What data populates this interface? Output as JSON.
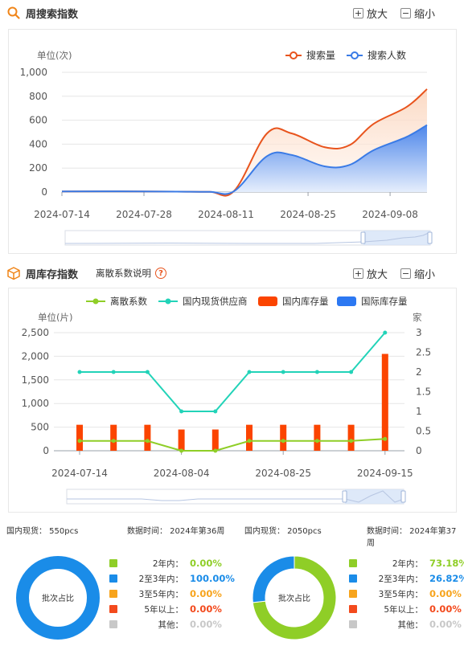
{
  "search_section": {
    "title": "周搜索指数",
    "zoom_in": "放大",
    "zoom_out": "缩小",
    "unit_label": "单位(次)",
    "legend": [
      "搜索量",
      "搜索人数"
    ]
  },
  "stock_section": {
    "title": "周库存指数",
    "dispersion_link": "离散系数说明",
    "help": "?",
    "zoom_in": "放大",
    "zoom_out": "缩小",
    "unit_left": "单位(片)",
    "unit_right": "家",
    "legend": [
      "离散系数",
      "国内现货供应商",
      "国内库存量",
      "国际库存量"
    ]
  },
  "chart_data": [
    {
      "type": "area",
      "title": "",
      "ylabel": "单位(次)",
      "ylim": [
        0,
        1000
      ],
      "yticks": [
        "0",
        "200",
        "400",
        "600",
        "800",
        "1,000"
      ],
      "xticks": [
        "2024-07-14",
        "2024-07-28",
        "2024-08-11",
        "2024-08-25",
        "2024-09-08"
      ],
      "colors": [
        "#e8541d",
        "#3a7be6"
      ],
      "series": [
        {
          "name": "搜索量",
          "x": [
            0,
            7,
            14,
            18,
            21,
            25,
            28,
            32,
            35,
            38,
            42,
            44.5
          ],
          "values": [
            5,
            6,
            3,
            2,
            10,
            490,
            490,
            375,
            390,
            570,
            710,
            860
          ]
        },
        {
          "name": "搜索人数",
          "x": [
            0,
            7,
            14,
            18,
            21,
            25,
            28,
            32,
            35,
            38,
            42,
            44.5
          ],
          "values": [
            5,
            6,
            3,
            2,
            8,
            300,
            310,
            215,
            225,
            350,
            460,
            560
          ]
        }
      ]
    },
    {
      "type": "bar",
      "title": "",
      "ylabel": "单位(片)",
      "ylim": [
        0,
        2500
      ],
      "yticks": [
        "0",
        "500",
        "1,000",
        "1,500",
        "2,000",
        "2,500"
      ],
      "y2label": "家",
      "y2lim": [
        0,
        3
      ],
      "y2ticks": [
        "0",
        "0.5",
        "1",
        "1.5",
        "2",
        "2.5",
        "3"
      ],
      "xticks": [
        "2024-07-14",
        "2024-08-04",
        "2024-08-25",
        "2024-09-15"
      ],
      "colors": {
        "bar": "#fb4400",
        "supplier": "#22d3b8",
        "dispersion": "#8fce27"
      },
      "series": [
        {
          "name": "国内库存量",
          "values": [
            550,
            550,
            550,
            450,
            450,
            550,
            550,
            550,
            550,
            2050
          ]
        },
        {
          "name": "国内现货供应商",
          "axis": "right",
          "values": [
            2,
            2,
            2,
            1,
            1,
            2,
            2,
            2,
            2,
            3
          ]
        },
        {
          "name": "离散系数",
          "axis": "right",
          "values": [
            0.25,
            0.25,
            0.25,
            0,
            0,
            0.25,
            0.25,
            0.25,
            0.25,
            0.3
          ]
        }
      ]
    },
    {
      "type": "pie",
      "center_label": "批次占比",
      "info_stock": "国内现货：  550pcs",
      "info_time": "数据时间：  2024年第36周",
      "slices": [
        {
          "label": "2年内：",
          "value": "0.00%",
          "color": "#8fce27"
        },
        {
          "label": "2至3年内：",
          "value": "100.00%",
          "color": "#1a8ce8"
        },
        {
          "label": "3至5年内：",
          "value": "0.00%",
          "color": "#f7a41d"
        },
        {
          "label": "5年以上：",
          "value": "0.00%",
          "color": "#f34a1d"
        },
        {
          "label": "其他：",
          "value": "0.00%",
          "color": "#c8c8c8"
        }
      ]
    },
    {
      "type": "pie",
      "center_label": "批次占比",
      "info_stock": "国内现货：  2050pcs",
      "info_time": "数据时间：  2024年第37周",
      "slices": [
        {
          "label": "2年内：",
          "value": "73.18%",
          "color": "#8fce27"
        },
        {
          "label": "2至3年内：",
          "value": "26.82%",
          "color": "#1a8ce8"
        },
        {
          "label": "3至5年内：",
          "value": "0.00%",
          "color": "#f7a41d"
        },
        {
          "label": "5年以上：",
          "value": "0.00%",
          "color": "#f34a1d"
        },
        {
          "label": "其他：",
          "value": "0.00%",
          "color": "#c8c8c8"
        }
      ]
    }
  ]
}
